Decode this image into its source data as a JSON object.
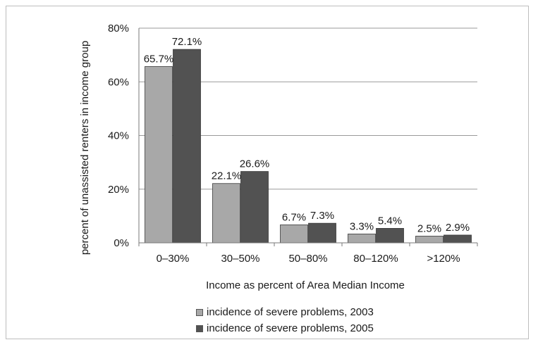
{
  "chart_data": {
    "type": "bar",
    "xlabel": "Income as percent of Area Median Income",
    "ylabel": "percent of unassisted renters in income group",
    "ylim": [
      0,
      80
    ],
    "yticks": [
      "0%",
      "20%",
      "40%",
      "60%",
      "80%"
    ],
    "ytick_values": [
      0,
      20,
      40,
      60,
      80
    ],
    "grid": true,
    "legend_position": "bottom",
    "categories": [
      "0–30%",
      "30–50%",
      "50–80%",
      "80–120%",
      ">120%"
    ],
    "series": [
      {
        "name": "incidence of severe problems, 2003",
        "values": [
          65.7,
          22.1,
          6.7,
          3.3,
          2.5
        ],
        "labels": [
          "65.7%",
          "22.1%",
          "6.7%",
          "3.3%",
          "2.5%"
        ],
        "color": "#a8a8a8"
      },
      {
        "name": "incidence of severe problems, 2005",
        "values": [
          72.1,
          26.6,
          7.3,
          5.4,
          2.9
        ],
        "labels": [
          "72.1%",
          "26.6%",
          "7.3%",
          "5.4%",
          "2.9%"
        ],
        "color": "#525252"
      }
    ],
    "gridline_color": "#9a9a9a",
    "axis_color": "#7a7a7a"
  }
}
